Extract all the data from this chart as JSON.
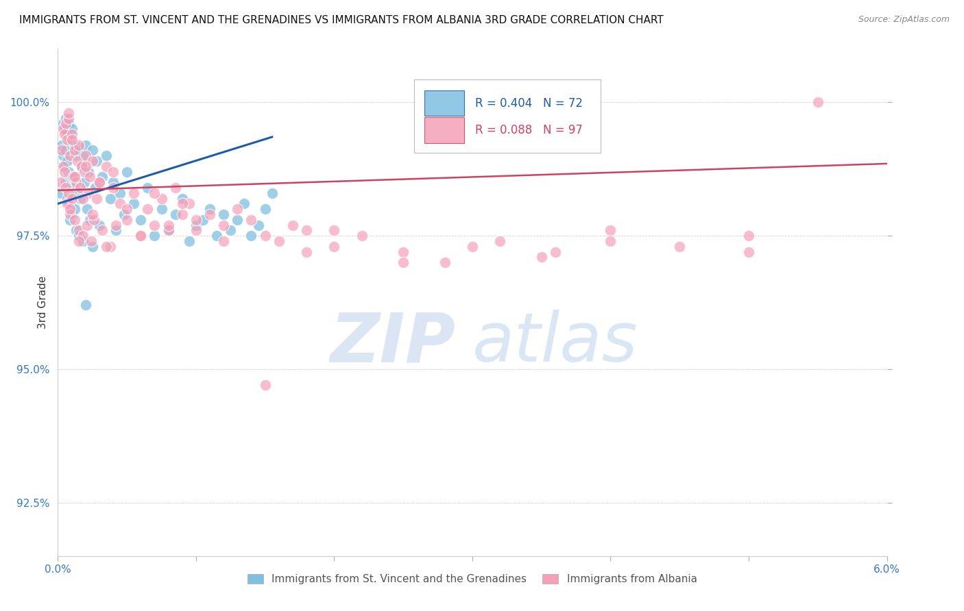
{
  "title": "IMMIGRANTS FROM ST. VINCENT AND THE GRENADINES VS IMMIGRANTS FROM ALBANIA 3RD GRADE CORRELATION CHART",
  "source": "Source: ZipAtlas.com",
  "ylabel": "3rd Grade",
  "xmin": 0.0,
  "xmax": 6.0,
  "ymin": 91.5,
  "ymax": 101.0,
  "yticks": [
    92.5,
    95.0,
    97.5,
    100.0
  ],
  "ytick_labels": [
    "92.5%",
    "95.0%",
    "97.5%",
    "100.0%"
  ],
  "legend_r1": "R = 0.404",
  "legend_n1": "N = 72",
  "legend_r2": "R = 0.088",
  "legend_n2": "N = 97",
  "color_blue": "#7fbfdf",
  "color_pink": "#f4a0b8",
  "color_line_blue": "#1a5caa",
  "color_line_pink": "#d04060",
  "color_axis_labels": "#3377cc",
  "watermark_zip": "ZIP",
  "watermark_atlas": "atlas",
  "blue_trend_x0": 0.0,
  "blue_trend_y0": 98.1,
  "blue_trend_x1": 1.55,
  "blue_trend_y1": 99.35,
  "pink_trend_x0": 0.0,
  "pink_trend_y0": 98.35,
  "pink_trend_x1": 6.0,
  "pink_trend_y1": 98.85,
  "blue_x": [
    0.02,
    0.03,
    0.04,
    0.04,
    0.05,
    0.05,
    0.06,
    0.06,
    0.06,
    0.07,
    0.07,
    0.07,
    0.08,
    0.08,
    0.08,
    0.09,
    0.09,
    0.1,
    0.1,
    0.1,
    0.11,
    0.12,
    0.12,
    0.13,
    0.13,
    0.14,
    0.15,
    0.15,
    0.16,
    0.17,
    0.18,
    0.18,
    0.19,
    0.2,
    0.21,
    0.22,
    0.23,
    0.25,
    0.25,
    0.27,
    0.28,
    0.3,
    0.32,
    0.35,
    0.38,
    0.4,
    0.42,
    0.45,
    0.48,
    0.5,
    0.55,
    0.6,
    0.65,
    0.7,
    0.75,
    0.8,
    0.85,
    0.9,
    0.95,
    1.0,
    1.05,
    1.1,
    1.15,
    1.2,
    1.25,
    1.3,
    1.35,
    1.4,
    1.45,
    1.5,
    1.55,
    0.2
  ],
  "blue_y": [
    98.3,
    99.2,
    99.6,
    99.0,
    99.5,
    98.8,
    99.7,
    99.1,
    98.5,
    99.4,
    98.9,
    98.2,
    99.6,
    98.7,
    98.1,
    99.3,
    97.8,
    99.5,
    98.6,
    97.9,
    98.4,
    99.2,
    98.0,
    99.0,
    97.6,
    98.3,
    99.1,
    97.5,
    98.2,
    98.8,
    99.0,
    97.4,
    98.5,
    99.2,
    98.0,
    98.7,
    97.8,
    99.1,
    97.3,
    98.4,
    98.9,
    97.7,
    98.6,
    99.0,
    98.2,
    98.5,
    97.6,
    98.3,
    97.9,
    98.7,
    98.1,
    97.8,
    98.4,
    97.5,
    98.0,
    97.6,
    97.9,
    98.2,
    97.4,
    97.7,
    97.8,
    98.0,
    97.5,
    97.9,
    97.6,
    97.8,
    98.1,
    97.5,
    97.7,
    98.0,
    98.3,
    96.2
  ],
  "pink_x": [
    0.02,
    0.03,
    0.04,
    0.04,
    0.05,
    0.05,
    0.06,
    0.06,
    0.07,
    0.07,
    0.08,
    0.08,
    0.09,
    0.09,
    0.1,
    0.1,
    0.11,
    0.12,
    0.12,
    0.13,
    0.14,
    0.15,
    0.15,
    0.16,
    0.17,
    0.18,
    0.19,
    0.2,
    0.21,
    0.22,
    0.23,
    0.24,
    0.25,
    0.26,
    0.28,
    0.3,
    0.32,
    0.35,
    0.38,
    0.4,
    0.42,
    0.45,
    0.5,
    0.55,
    0.6,
    0.65,
    0.7,
    0.75,
    0.8,
    0.85,
    0.9,
    0.95,
    1.0,
    1.1,
    1.2,
    1.3,
    1.4,
    1.5,
    1.6,
    1.7,
    1.8,
    2.0,
    2.2,
    2.5,
    2.8,
    3.2,
    3.6,
    4.0,
    4.5,
    5.0,
    5.5,
    0.08,
    0.09,
    0.1,
    0.12,
    0.15,
    0.18,
    0.2,
    0.25,
    0.3,
    0.35,
    0.4,
    0.5,
    0.6,
    0.7,
    0.8,
    0.9,
    1.0,
    1.2,
    1.5,
    1.8,
    2.0,
    2.5,
    3.0,
    3.5,
    4.0,
    5.0
  ],
  "pink_y": [
    98.5,
    99.1,
    99.5,
    98.8,
    99.4,
    98.7,
    99.6,
    98.4,
    99.3,
    98.1,
    99.7,
    98.3,
    99.0,
    97.9,
    99.4,
    98.2,
    98.6,
    99.1,
    97.8,
    98.5,
    98.9,
    99.2,
    97.6,
    98.4,
    98.8,
    97.5,
    98.7,
    99.0,
    97.7,
    98.3,
    98.6,
    97.4,
    98.9,
    97.8,
    98.2,
    98.5,
    97.6,
    98.8,
    97.3,
    98.4,
    97.7,
    98.1,
    97.8,
    98.3,
    97.5,
    98.0,
    97.7,
    98.2,
    97.6,
    98.4,
    97.9,
    98.1,
    97.6,
    97.9,
    97.7,
    98.0,
    97.8,
    97.5,
    97.4,
    97.7,
    97.6,
    97.3,
    97.5,
    97.2,
    97.0,
    97.4,
    97.2,
    97.6,
    97.3,
    97.5,
    100.0,
    99.8,
    98.0,
    99.3,
    98.6,
    97.4,
    98.2,
    98.8,
    97.9,
    98.5,
    97.3,
    98.7,
    98.0,
    97.5,
    98.3,
    97.7,
    98.1,
    97.8,
    97.4,
    94.7,
    97.2,
    97.6,
    97.0,
    97.3,
    97.1,
    97.4,
    97.2
  ]
}
